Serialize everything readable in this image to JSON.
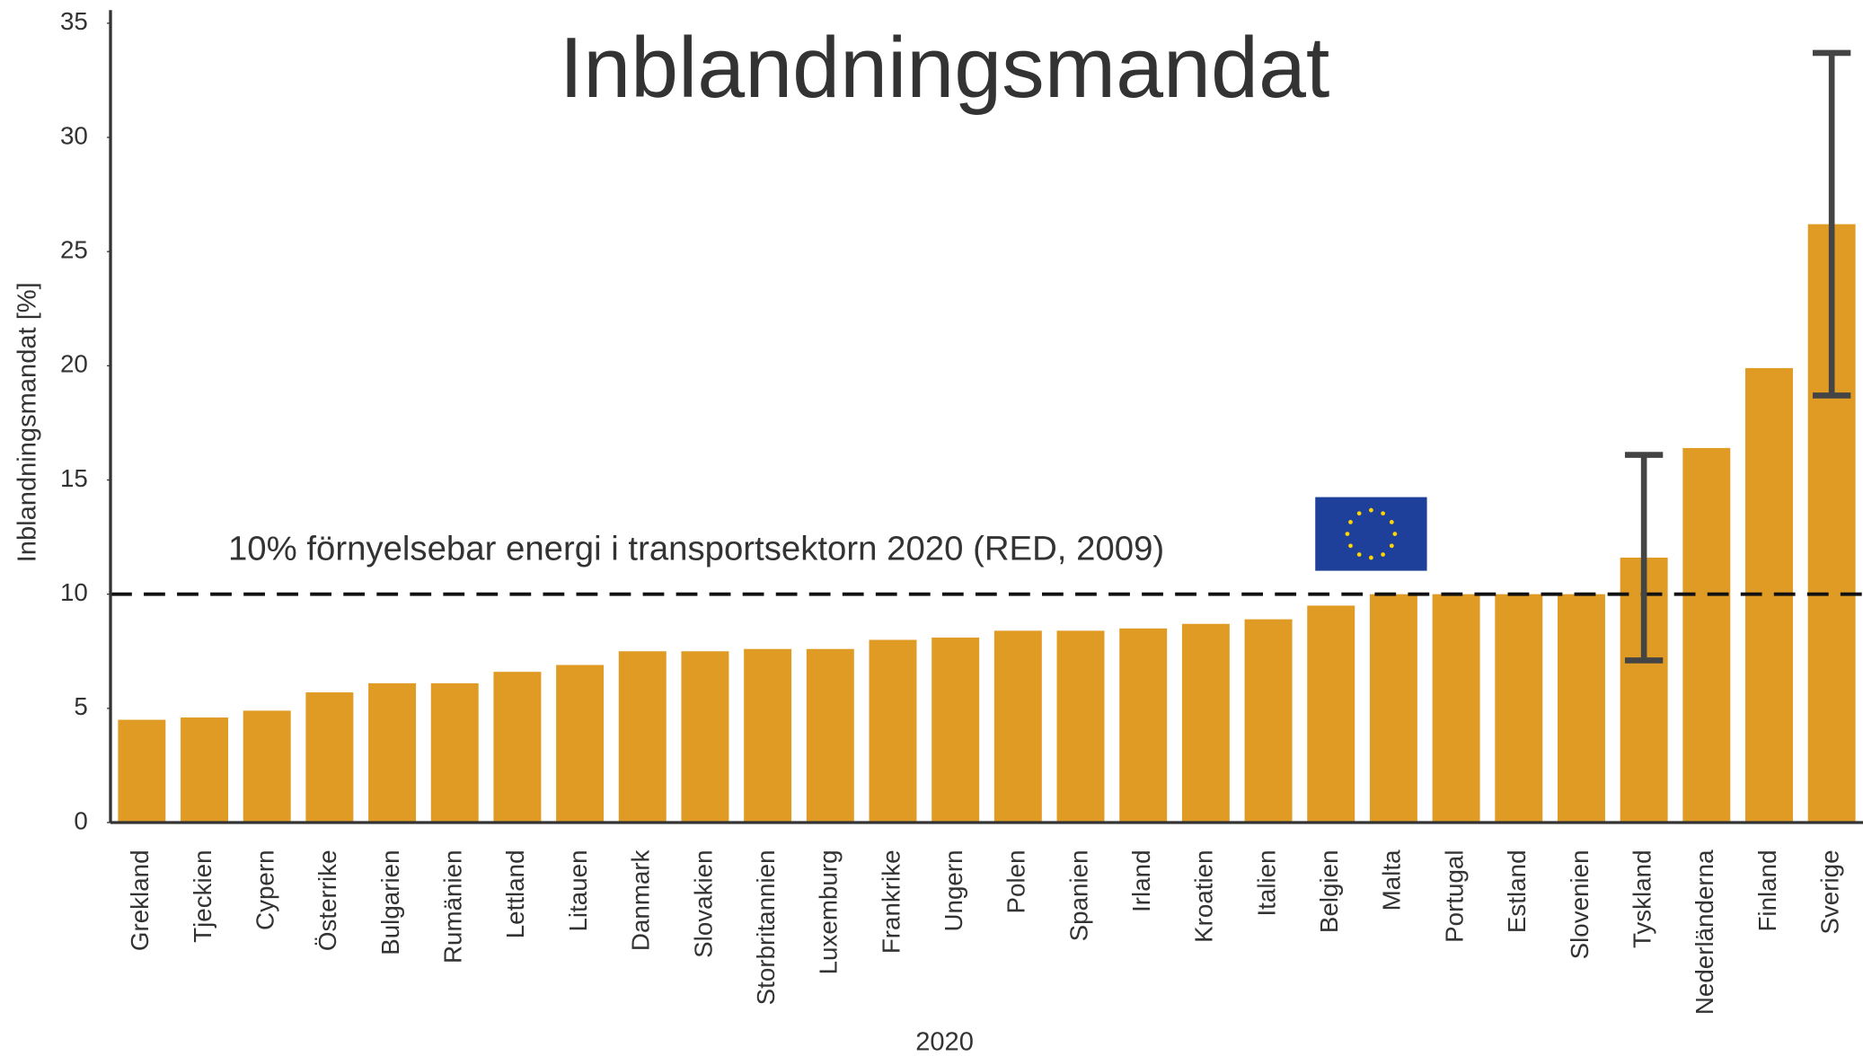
{
  "chart_data": {
    "type": "bar",
    "title": "Inblandningsmandat",
    "x_label": "2020",
    "y_label": "Inblandningsmandat [%]",
    "categories": [
      "Grekland",
      "Tjeckien",
      "Cypern",
      "Österrike",
      "Bulgarien",
      "Rumänien",
      "Lettland",
      "Litauen",
      "Danmark",
      "Slovakien",
      "Storbritannien",
      "Luxemburg",
      "Frankrike",
      "Ungern",
      "Polen",
      "Spanien",
      "Irland",
      "Kroatien",
      "Italien",
      "Belgien",
      "Malta",
      "Portugal",
      "Estland",
      "Slovenien",
      "Tyskland",
      "Nederländerna",
      "Finland",
      "Sverige"
    ],
    "values": [
      4.5,
      4.6,
      4.9,
      5.7,
      6.1,
      6.1,
      6.6,
      6.9,
      7.5,
      7.5,
      7.6,
      7.6,
      8.0,
      8.1,
      8.4,
      8.4,
      8.5,
      8.7,
      8.9,
      9.5,
      10,
      10,
      10,
      10,
      11.6,
      16.4,
      19.9,
      26.2
    ],
    "errors": [
      null,
      null,
      null,
      null,
      null,
      null,
      null,
      null,
      null,
      null,
      null,
      null,
      null,
      null,
      null,
      null,
      null,
      null,
      null,
      null,
      null,
      null,
      null,
      null,
      4.5,
      null,
      null,
      7.5
    ],
    "color": "#e09b25",
    "error_color": "#444444",
    "reference_line": {
      "value": 10,
      "label": "10% förnyelsebar energi i transportsektorn 2020 (RED, 2009)"
    },
    "ylim": [
      0,
      35
    ],
    "yticks": [
      0,
      5,
      10,
      15,
      20,
      25,
      30,
      35
    ],
    "grid": false
  }
}
